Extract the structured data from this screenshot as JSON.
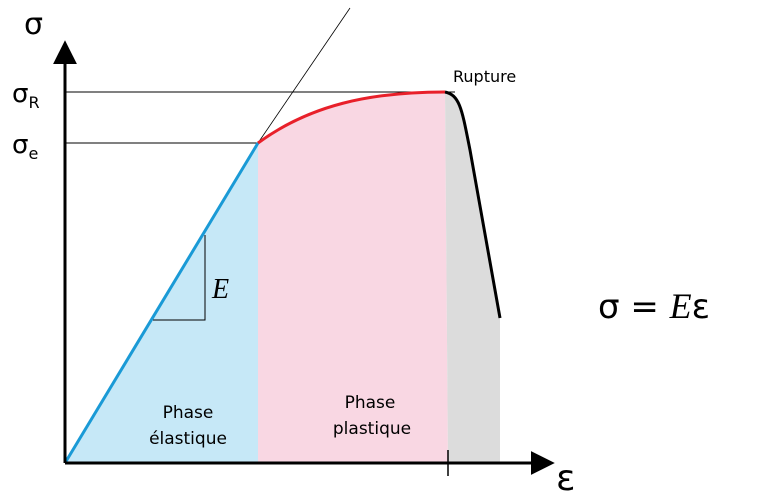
{
  "diagram": {
    "y_axis_label": "σ",
    "x_axis_label": "ε",
    "y_levels": [
      {
        "symbol": "σ",
        "sub": "R"
      },
      {
        "symbol": "σ",
        "sub": "e"
      }
    ],
    "rupture_label": "Rupture",
    "slope_label": "E",
    "phases": [
      {
        "lines": [
          "Phase",
          "élastique"
        ]
      },
      {
        "lines": [
          "Phase",
          "plastique"
        ]
      }
    ],
    "formula": {
      "left": "σ = ",
      "modulus": "E",
      "strain": "ε"
    }
  }
}
